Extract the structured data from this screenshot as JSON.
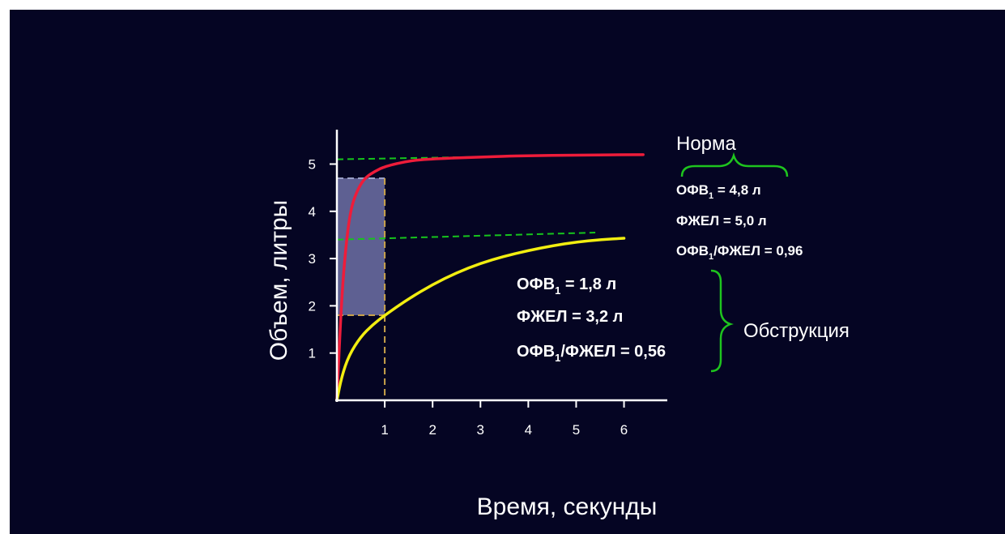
{
  "colors": {
    "background": "#050523",
    "axis": "#ffffff",
    "norm_curve": "#ee1c3a",
    "obstruction_curve": "#f2ee10",
    "guide_dash": "#16c41c",
    "bracket": "#1ec41e",
    "shaded_area": "#7c7fb8"
  },
  "chart_data": {
    "type": "line",
    "xlabel": "Время, секунды",
    "ylabel": "Объем, литры",
    "xticks": [
      "1",
      "2",
      "3",
      "4",
      "5",
      "6"
    ],
    "yticks": [
      "1",
      "2",
      "3",
      "4",
      "5"
    ],
    "xlim": [
      0,
      6.6
    ],
    "ylim": [
      0,
      5.9
    ],
    "series": [
      {
        "points": [
          [
            0,
            0
          ],
          [
            0.1,
            2.2
          ],
          [
            0.2,
            3.4
          ],
          [
            0.3,
            4.1
          ],
          [
            0.45,
            4.5
          ],
          [
            0.6,
            4.72
          ],
          [
            0.8,
            4.85
          ],
          [
            1.0,
            4.95
          ],
          [
            1.5,
            5.07
          ],
          [
            2,
            5.11
          ],
          [
            3,
            5.15
          ],
          [
            4,
            5.18
          ],
          [
            5,
            5.19
          ],
          [
            6.4,
            5.2
          ]
        ]
      },
      {
        "points": [
          [
            0,
            0
          ],
          [
            0.1,
            0.5
          ],
          [
            0.25,
            0.95
          ],
          [
            0.5,
            1.35
          ],
          [
            0.75,
            1.6
          ],
          [
            1.0,
            1.8
          ],
          [
            1.5,
            2.15
          ],
          [
            2,
            2.45
          ],
          [
            2.5,
            2.7
          ],
          [
            3,
            2.9
          ],
          [
            3.5,
            3.05
          ],
          [
            4,
            3.17
          ],
          [
            4.5,
            3.27
          ],
          [
            5,
            3.35
          ],
          [
            5.5,
            3.4
          ],
          [
            6,
            3.43
          ]
        ]
      }
    ],
    "guides": {
      "norm_fvc_level": 5.1,
      "obstr_fvc_level": 3.4,
      "fev1_norm_level": 4.7,
      "fev1_obstr_level": 1.8,
      "one_second": 1.0
    }
  },
  "annotations": {
    "norm": {
      "label": "Норма",
      "lines": [
        {
          "main": "ОФВ",
          "sub": "1",
          "rest": " = 4,8 л"
        },
        {
          "main": "ФЖЕЛ = 5,0 л",
          "sub": "",
          "rest": ""
        },
        {
          "main": "ОФВ",
          "sub": "1",
          "rest": "/ФЖЕЛ = 0,96"
        }
      ]
    },
    "obstruction": {
      "label": "Обструкция",
      "lines": [
        {
          "main": "ОФВ",
          "sub": "1",
          "rest": " = 1,8 л"
        },
        {
          "main": "ФЖЕЛ = 3,2 л",
          "sub": "",
          "rest": ""
        },
        {
          "main": "ОФВ",
          "sub": "1",
          "rest": "/ФЖЕЛ = 0,56"
        }
      ]
    }
  }
}
